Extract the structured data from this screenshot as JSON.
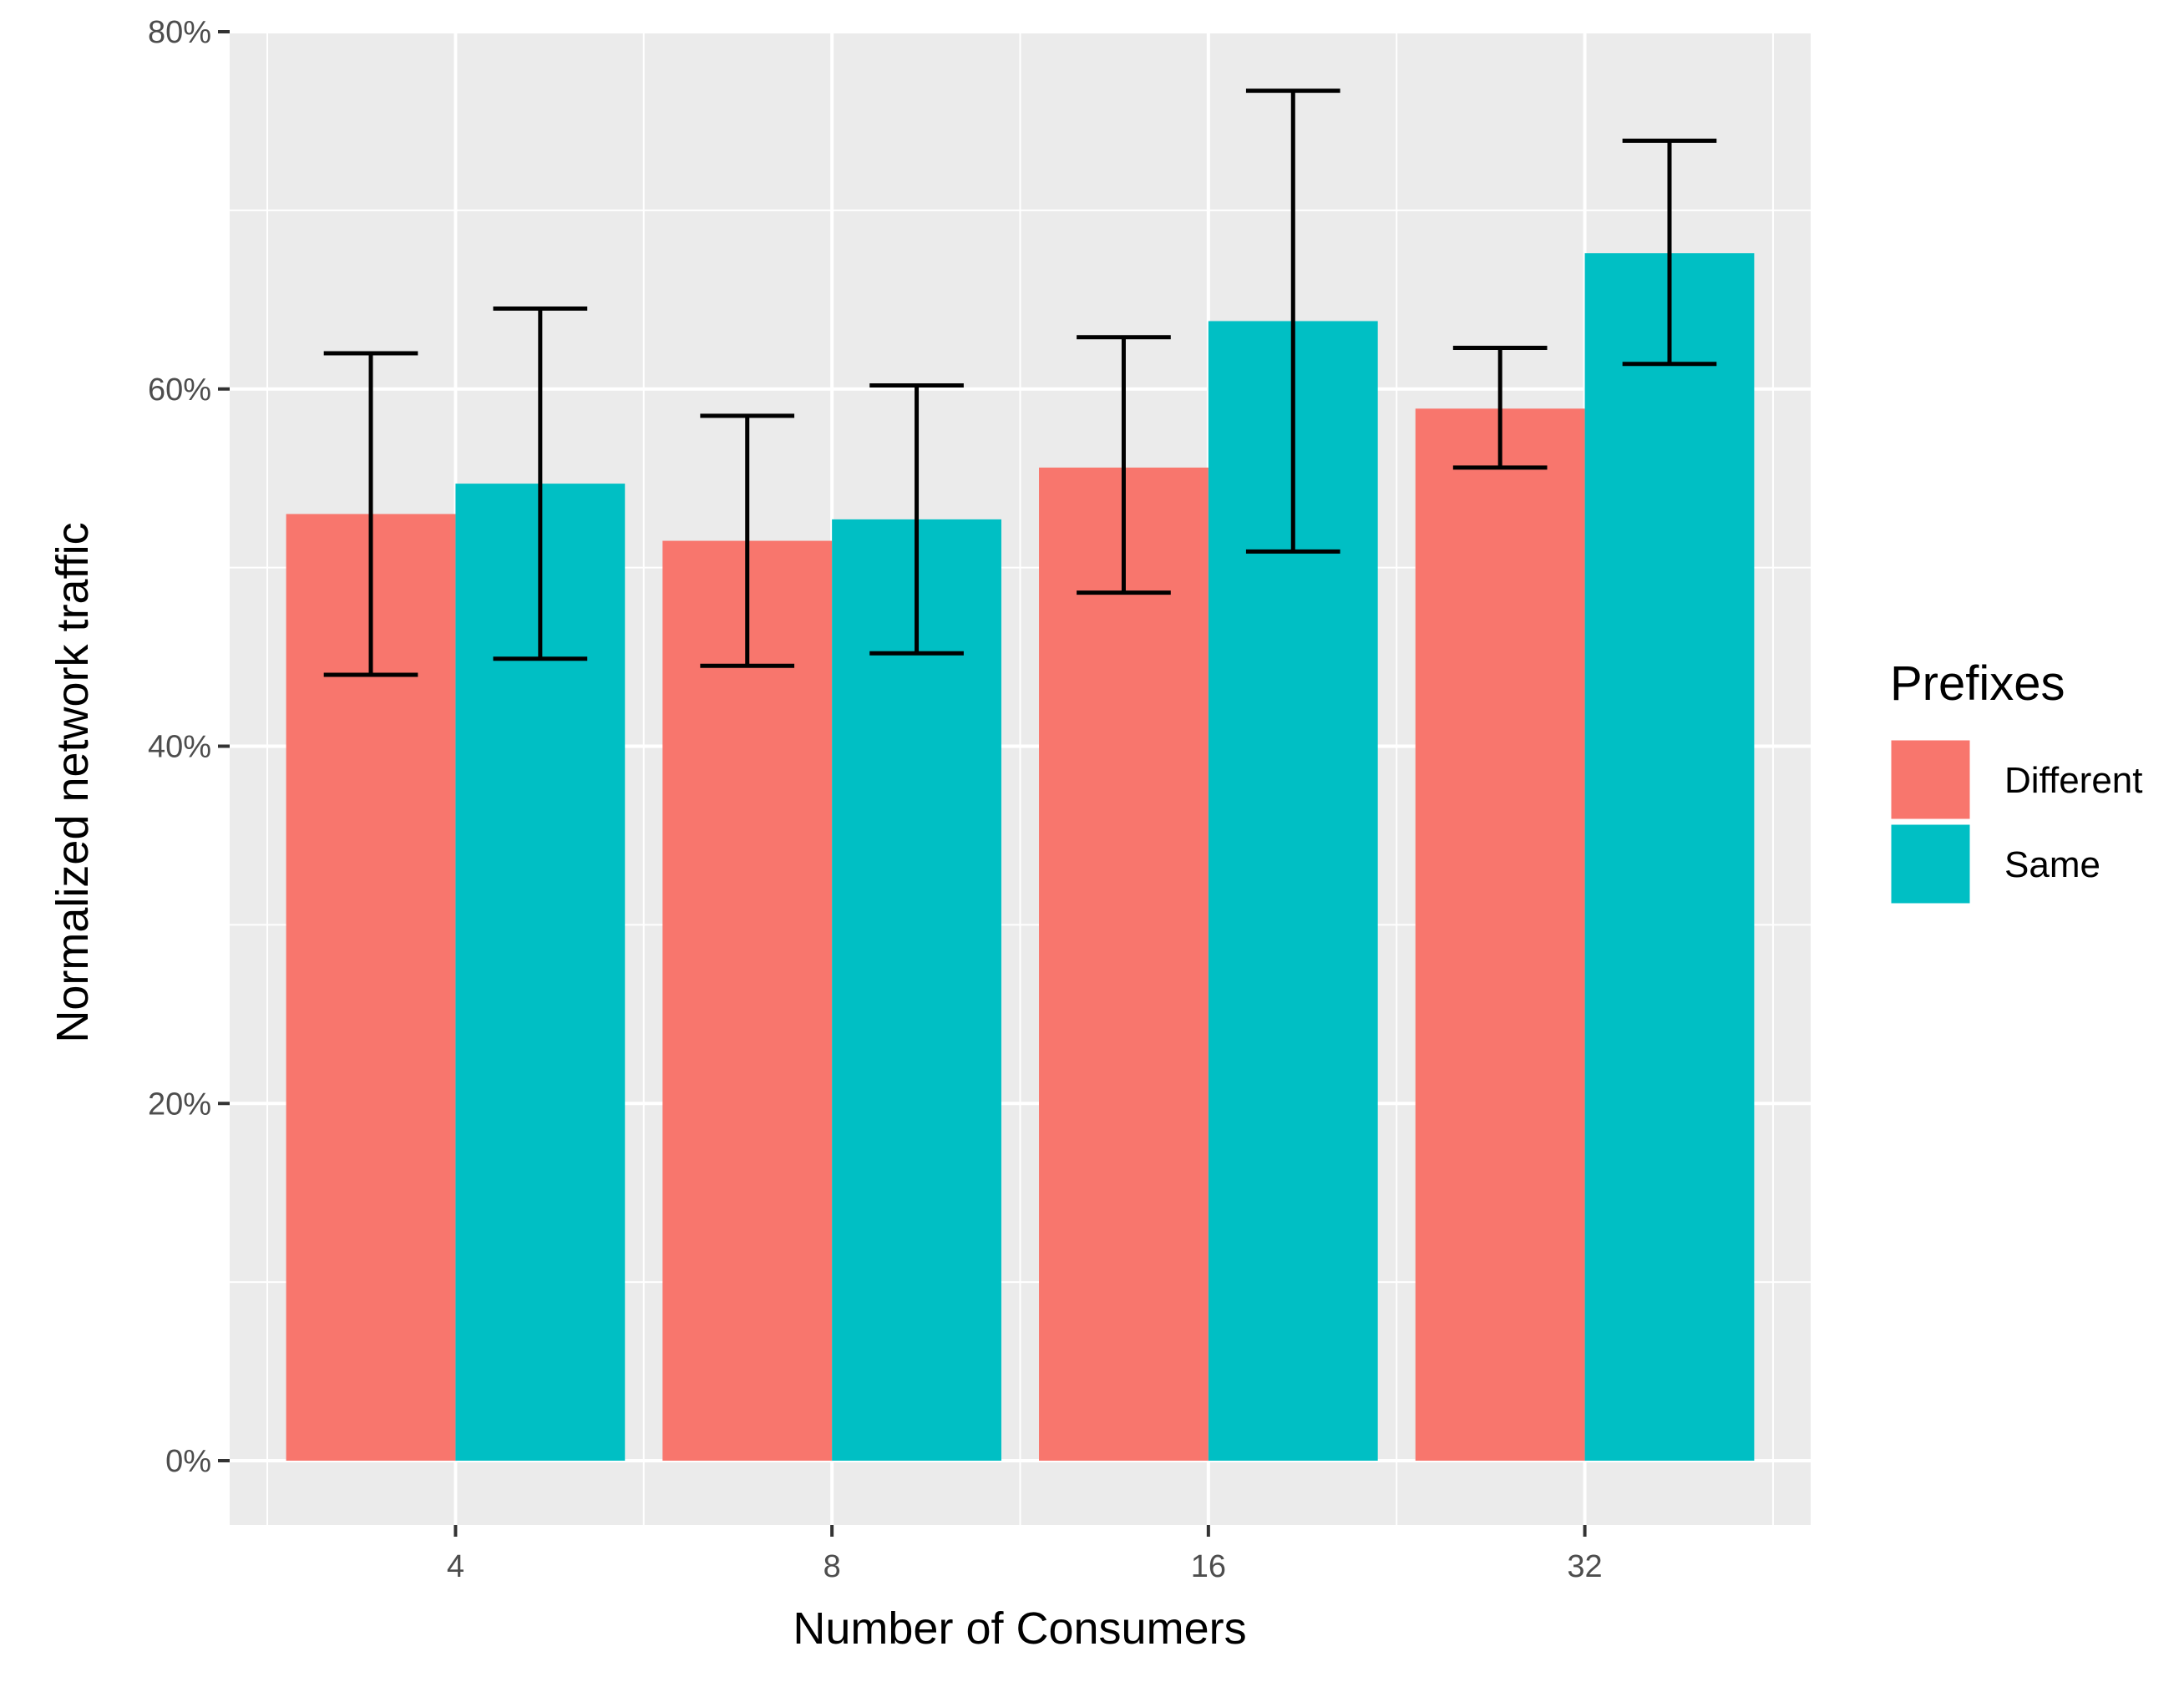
{
  "chart_data": {
    "type": "bar",
    "title": "",
    "xlabel": "Number of Consumers",
    "ylabel": "Normalized network traffic",
    "categories": [
      "4",
      "8",
      "16",
      "32"
    ],
    "ylim": [
      -0.036,
      0.8
    ],
    "yticks": [
      0,
      0.2,
      0.4,
      0.6,
      0.8
    ],
    "ytick_labels": [
      "0%",
      "20%",
      "40%",
      "60%",
      "80%"
    ],
    "grid": true,
    "legend": {
      "title": "Prefixes",
      "position": "right"
    },
    "series": [
      {
        "name": "Different",
        "color": "#F8766D",
        "values": [
          0.53,
          0.515,
          0.556,
          0.589
        ],
        "error_low": [
          0.44,
          0.445,
          0.486,
          0.556
        ],
        "error_high": [
          0.62,
          0.585,
          0.629,
          0.623
        ]
      },
      {
        "name": "Same",
        "color": "#00BFC4",
        "values": [
          0.547,
          0.527,
          0.638,
          0.676
        ],
        "error_low": [
          0.449,
          0.452,
          0.509,
          0.614
        ],
        "error_high": [
          0.645,
          0.602,
          0.767,
          0.739
        ]
      }
    ]
  }
}
